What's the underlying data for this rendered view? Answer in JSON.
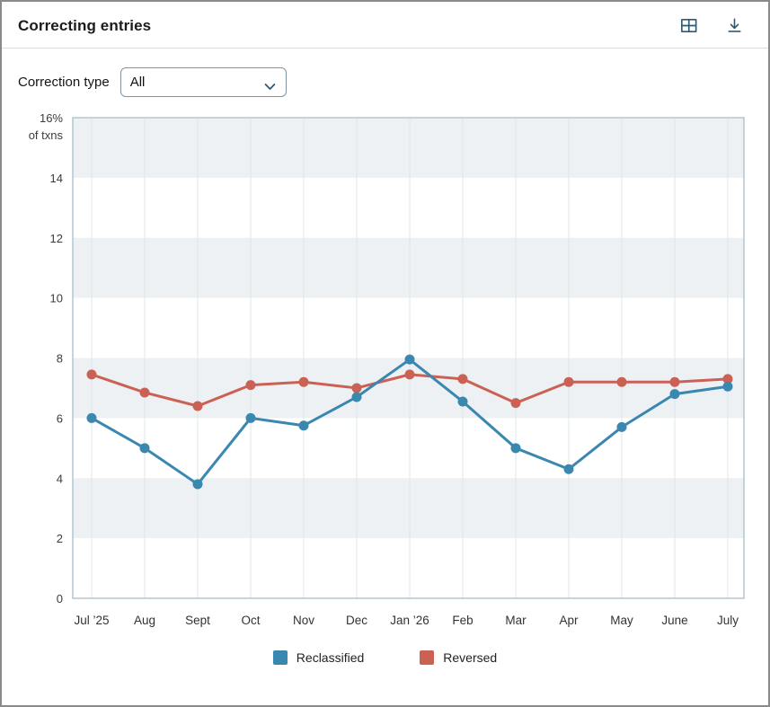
{
  "header": {
    "title": "Correcting entries",
    "icons": [
      {
        "name": "table-view-icon"
      },
      {
        "name": "download-icon"
      }
    ],
    "icon_color": "#2d5a73"
  },
  "controls": {
    "label": "Correction type",
    "dropdown_value": "All"
  },
  "chart_data": {
    "type": "line",
    "title": "Correcting entries",
    "ylabel": "% of txns",
    "y_top_label_lines": [
      "16%",
      "of txns"
    ],
    "categories": [
      "Jul ’25",
      "Aug",
      "Sept",
      "Oct",
      "Nov",
      "Dec",
      "Jan ’26",
      "Feb",
      "Mar",
      "Apr",
      "May",
      "June",
      "July"
    ],
    "series": [
      {
        "name": "Reclassified",
        "color": "#3a87b0",
        "values": [
          6.0,
          5.0,
          3.8,
          6.0,
          5.75,
          6.7,
          7.95,
          6.55,
          5.0,
          4.3,
          5.7,
          6.8,
          7.05
        ]
      },
      {
        "name": "Reversed",
        "color": "#cb6154",
        "values": [
          7.45,
          6.85,
          6.4,
          7.1,
          7.2,
          7.0,
          7.45,
          7.3,
          6.5,
          7.2,
          7.2,
          7.2,
          7.3
        ]
      }
    ],
    "ylim": [
      0,
      16
    ],
    "yticks": [
      0,
      2,
      4,
      6,
      8,
      10,
      12,
      14,
      16
    ],
    "grid": "vertical-only",
    "band_fill_ranges": [
      [
        14,
        16
      ],
      [
        10,
        12
      ],
      [
        6,
        8
      ],
      [
        2,
        4
      ]
    ],
    "band_color": "#edf1f4",
    "grid_color": "#dde7ed",
    "plot_border_color": "#b3c5d1",
    "legend_position": "bottom"
  }
}
